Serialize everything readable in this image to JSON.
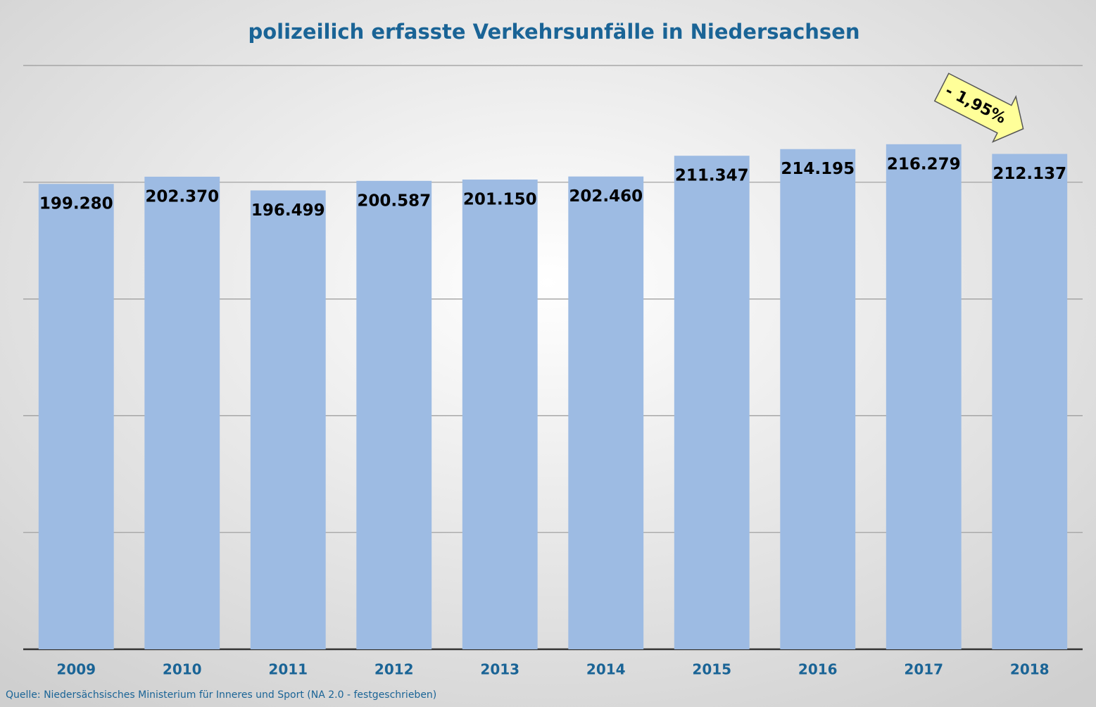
{
  "chart_data": {
    "type": "bar",
    "title": "polizeilich erfasste Verkehrsunfälle in Niedersachsen",
    "categories": [
      "2009",
      "2010",
      "2011",
      "2012",
      "2013",
      "2014",
      "2015",
      "2016",
      "2017",
      "2018"
    ],
    "values": [
      199280,
      202370,
      196499,
      200587,
      201150,
      202460,
      211347,
      214195,
      216279,
      212137
    ],
    "value_labels": [
      "199.280",
      "202.370",
      "196.499",
      "200.587",
      "201.150",
      "202.460",
      "211.347",
      "214.195",
      "216.279",
      "212.137"
    ],
    "color": "#9dbbe3",
    "ylim": [
      0,
      250000
    ],
    "yticks": [
      0,
      50000,
      100000,
      150000,
      200000,
      250000
    ],
    "grid": true,
    "annotation": "- 1,95%",
    "source": "Quelle: Niedersächsisches Ministerium für Inneres und Sport (NA 2.0 - festgeschrieben)"
  }
}
